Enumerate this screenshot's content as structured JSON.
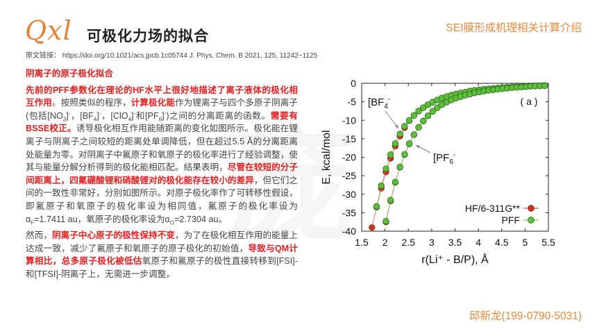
{
  "header": {
    "logo_text": "Qxl",
    "title": "可极化力场的拟合",
    "citation": "原文链接： https://doi.org/10.1021/acs.jpcb.1c05744  J. Phys. Chem. B 2021, 125, 11242−1125",
    "topic": "SEI膜形成机理相关计算介绍"
  },
  "footer": {
    "author": "邱新龙(199-0790-5031)"
  },
  "section": {
    "heading": "阴离子的原子极化拟合",
    "paragraphs": [
      [
        {
          "t": "先前的PFF参数化在理论的HF水平上很好地描述了离子液体的极化相互作用",
          "red": true
        },
        {
          "t": "。按照类似的程序，"
        },
        {
          "t": "计算极化能",
          "red": true
        },
        {
          "t": "作为锂离子与四个多原子阴离子(包括[NO"
        },
        {
          "t": "3",
          "sub": true
        },
        {
          "t": "]"
        },
        {
          "t": "-",
          "sup": true
        },
        {
          "t": "，[BF"
        },
        {
          "t": "4",
          "sub": true
        },
        {
          "t": "]"
        },
        {
          "t": "-",
          "sup": true
        },
        {
          "t": "，[ClO"
        },
        {
          "t": "4",
          "sub": true
        },
        {
          "t": "]"
        },
        {
          "t": "-",
          "sup": true
        },
        {
          "t": "和[PF"
        },
        {
          "t": "6",
          "sub": true
        },
        {
          "t": "]"
        },
        {
          "t": "-",
          "sup": true
        },
        {
          "t": ")之间的分离距离的函数。"
        },
        {
          "t": "需要有BSSE校正。",
          "red": true
        },
        {
          "t": "诱导极化相互作用能随距离的变化如图所示。极化能在锂离子与阴离子之间较短的距离处单调降低，但在超过5.5 Å的分离距离处能量为零。对阴离子中氟原子和氧原子的极化率进行了经验调整，使其与能量分解分析得到的极化能相匹配。结果表明，"
        },
        {
          "t": "尽管在较短的分子间距离上，四氟硼酸锂和硝酸锂对的极化能存在较小的差异",
          "red": true
        },
        {
          "t": "，但它们之间的一致性非常好，分别如图所示。对原子极化率作了可转移性假设，即氟原子和氧原子的极化率设为相同值，氟原子的极化率设为α"
        },
        {
          "t": "F",
          "sub": true
        },
        {
          "t": "=1.7411 au，氧原子的极化率设为α"
        },
        {
          "t": "O",
          "sub": true
        },
        {
          "t": "=2.7304 au。"
        }
      ],
      [
        {
          "t": "然而，"
        },
        {
          "t": "阴离子中心原子的极性保持不变",
          "red": true
        },
        {
          "t": "，为了在极化相互作用的能量上达成一致，减少了氟原子和氧原子的原子极化的初始值，"
        },
        {
          "t": "导致与QM计算相比，总多原子极化被低估",
          "red": true
        },
        {
          "t": "氧原子和氟原子的极性直接转移到[FSI]-和[TFSI]-阴离子上，无需进一步调整。"
        }
      ]
    ]
  },
  "colors": {
    "accent": "#e58a3e",
    "highlight": "#e52020",
    "hf": "#e02a2a",
    "pff": "#5cbf3a"
  },
  "chart_data": {
    "type": "scatter",
    "panel_label": "( a )",
    "xlabel": "r(Li⁺ - B/P), Å",
    "ylabel": "E, kcal/mol",
    "xlim": [
      1.5,
      5.5
    ],
    "ylim": [
      -40,
      0
    ],
    "xticks": [
      "1.5",
      "2",
      "2.5",
      "3",
      "3.5",
      "4",
      "4.5",
      "5",
      "5.5"
    ],
    "yticks": [
      "0",
      "-5",
      "-10",
      "-15",
      "-20",
      "-25",
      "-30",
      "-35",
      "-40"
    ],
    "legend": {
      "position": "bottom-right",
      "entries": [
        "HF/6-311G**",
        "PFF"
      ]
    },
    "annotations": [
      {
        "base": "[BF",
        "sub": "4",
        "sup": "-"
      },
      {
        "base": "[PF",
        "sub": "6",
        "sup": "-"
      }
    ],
    "series": [
      {
        "name": "HF/6-311G**",
        "anion": "BF4",
        "x_start": 1.72,
        "x_step": 0.1,
        "values": [
          -39.0,
          -33.5,
          -28.4,
          -24.0,
          -20.3,
          -17.0,
          -14.3,
          -12.0,
          -10.1,
          -8.7,
          -7.5,
          -6.6,
          -5.8,
          -5.1,
          -4.5,
          -4.0,
          -3.6,
          -3.2,
          -2.9,
          -2.6,
          -2.4,
          -2.1,
          -1.9,
          -1.8,
          -1.6,
          -1.5,
          -1.4,
          -1.25,
          -1.15,
          -1.06,
          -0.98,
          -0.91,
          -0.84,
          -0.78,
          -0.73,
          -0.68,
          -0.63,
          -0.59
        ]
      },
      {
        "name": "HF/6-311G**",
        "anion": "PF6",
        "x_start": 2.02,
        "x_step": 0.1,
        "values": [
          -37.5,
          -31.8,
          -26.8,
          -22.7,
          -19.3,
          -16.4,
          -13.9,
          -11.9,
          -10.2,
          -8.8,
          -7.6,
          -6.6,
          -5.8,
          -5.1,
          -4.5,
          -4.0,
          -3.6,
          -3.2,
          -2.9,
          -2.6,
          -2.35,
          -2.1,
          -1.9,
          -1.75,
          -1.6,
          -1.45,
          -1.3,
          -1.2,
          -1.1,
          -1.0,
          -0.9,
          -0.8,
          -0.75,
          -0.7,
          -0.65
        ]
      },
      {
        "name": "PFF",
        "anion": "BF4",
        "x_start": 1.82,
        "x_step": 0.1,
        "values": [
          -33.3,
          -27.7,
          -23.1,
          -19.3,
          -16.3,
          -13.7,
          -11.6,
          -10.0,
          -8.7,
          -7.5,
          -6.6,
          -5.8,
          -5.1,
          -4.5,
          -4.0,
          -3.6,
          -3.2,
          -2.9,
          -2.6,
          -2.4,
          -2.1,
          -1.9,
          -1.8,
          -1.6,
          -1.5,
          -1.4,
          -1.25,
          -1.15,
          -1.06,
          -0.98,
          -0.91,
          -0.84,
          -0.78,
          -0.73,
          -0.68,
          -0.63,
          -0.59
        ]
      },
      {
        "name": "PFF",
        "anion": "PF6",
        "x_start": 2.02,
        "x_step": 0.1,
        "values": [
          -37.3,
          -31.6,
          -26.7,
          -22.6,
          -19.2,
          -16.3,
          -13.9,
          -11.9,
          -10.2,
          -8.8,
          -7.6,
          -6.6,
          -5.8,
          -5.1,
          -4.5,
          -4.0,
          -3.6,
          -3.2,
          -2.9,
          -2.6,
          -2.35,
          -2.1,
          -1.9,
          -1.75,
          -1.6,
          -1.45,
          -1.3,
          -1.2,
          -1.1,
          -1.0,
          -0.9,
          -0.8,
          -0.75,
          -0.7,
          -0.65
        ]
      }
    ]
  }
}
